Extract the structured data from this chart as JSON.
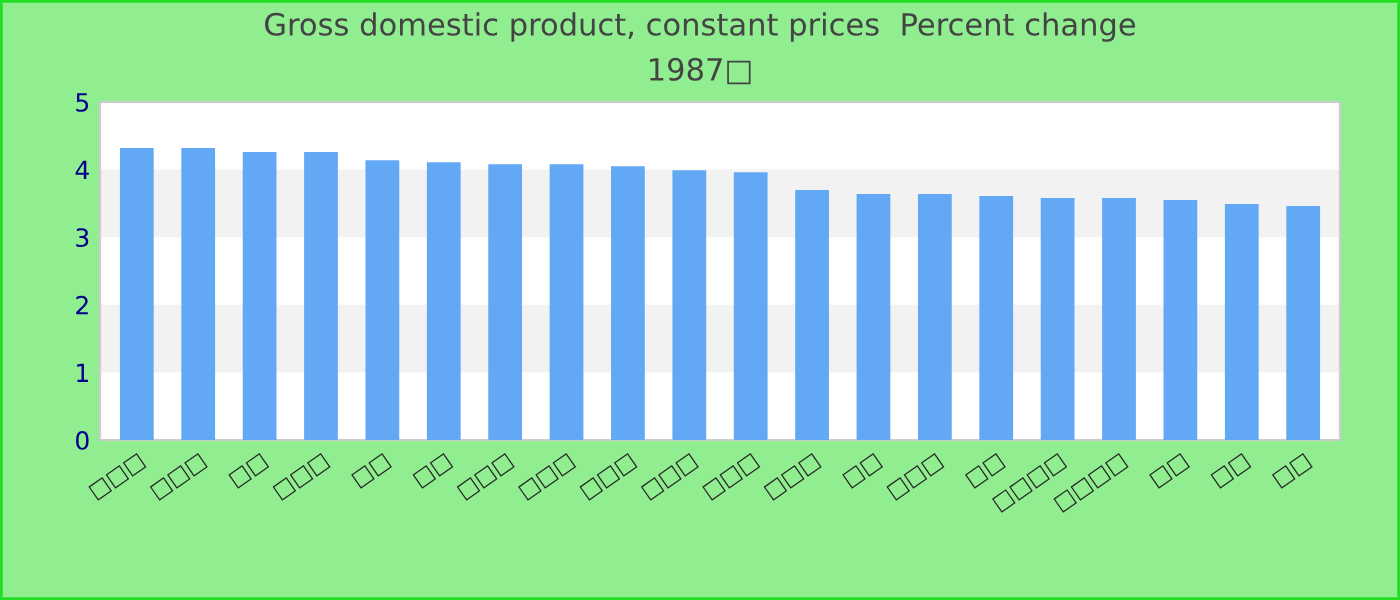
{
  "chart_data": {
    "type": "bar",
    "title": "Gross domestic product, constant prices  Percent change",
    "subtitle": "1987□",
    "categories": [
      "□□□",
      "□□□",
      "□□",
      "□□□",
      "□□",
      "□□",
      "□□□",
      "□□□",
      "□□□",
      "□□□",
      "□□□",
      "□□□",
      "□□",
      "□□□",
      "□□",
      "□□□□",
      "□□□□",
      "□□",
      "□□",
      "□□"
    ],
    "values": [
      4.32,
      4.32,
      4.26,
      4.26,
      4.14,
      4.11,
      4.08,
      4.08,
      4.05,
      3.99,
      3.96,
      3.7,
      3.64,
      3.64,
      3.61,
      3.58,
      3.58,
      3.55,
      3.49,
      3.46
    ],
    "color": "#63a8f4",
    "ylim": [
      0,
      5
    ],
    "yticks": [
      0,
      1,
      2,
      3,
      4,
      5
    ],
    "bands": [
      {
        "axis": "y",
        "from": 1,
        "to": 2,
        "color": "#f2f2f2"
      },
      {
        "axis": "y",
        "from": 3,
        "to": 4,
        "color": "#f2f2f2"
      }
    ]
  }
}
